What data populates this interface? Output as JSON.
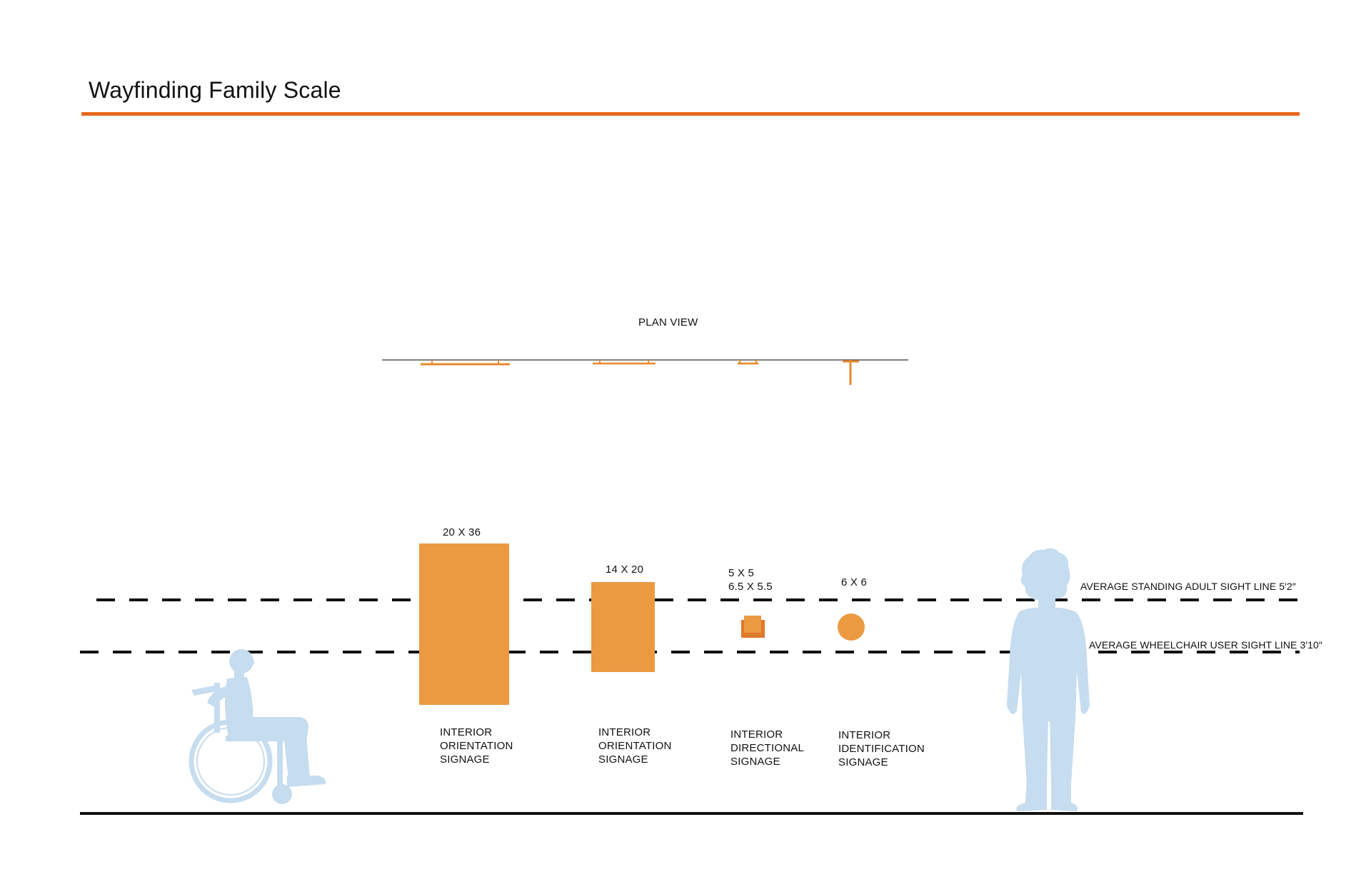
{
  "title": "Wayfinding Family Scale",
  "plan_view_label": "PLAN VIEW",
  "colors": {
    "accent_orange": "#E8671E",
    "sign_orange": "#EB9A42",
    "sign_orange_dark": "#E07A2C",
    "silhouette_blue": "#C6DCEF",
    "line_black": "#111111",
    "plan_line_gray": "#555555"
  },
  "sight_lines": {
    "standing": "AVERAGE STANDING ADULT SIGHT LINE 5′2″",
    "wheelchair": "AVERAGE WHEELCHAIR USER SIGHT LINE 3′10″"
  },
  "signs": [
    {
      "dimension": "20 X 36",
      "dimension_line2": "",
      "caption": [
        "INTERIOR",
        "ORIENTATION",
        "SIGNAGE"
      ],
      "shape": "rectangle"
    },
    {
      "dimension": "14 X 20",
      "dimension_line2": "",
      "caption": [
        "INTERIOR",
        "ORIENTATION",
        "SIGNAGE"
      ],
      "shape": "rectangle"
    },
    {
      "dimension": "5 X 5",
      "dimension_line2": "6.5 X  5.5",
      "caption": [
        "INTERIOR",
        "DIRECTIONAL",
        "SIGNAGE"
      ],
      "shape": "square"
    },
    {
      "dimension": "6 X 6",
      "dimension_line2": "",
      "caption": [
        "INTERIOR",
        "IDENTIFICATION",
        "SIGNAGE"
      ],
      "shape": "circle"
    }
  ],
  "figures": [
    {
      "name": "wheelchair user silhouette"
    },
    {
      "name": "standing adult silhouette"
    }
  ]
}
